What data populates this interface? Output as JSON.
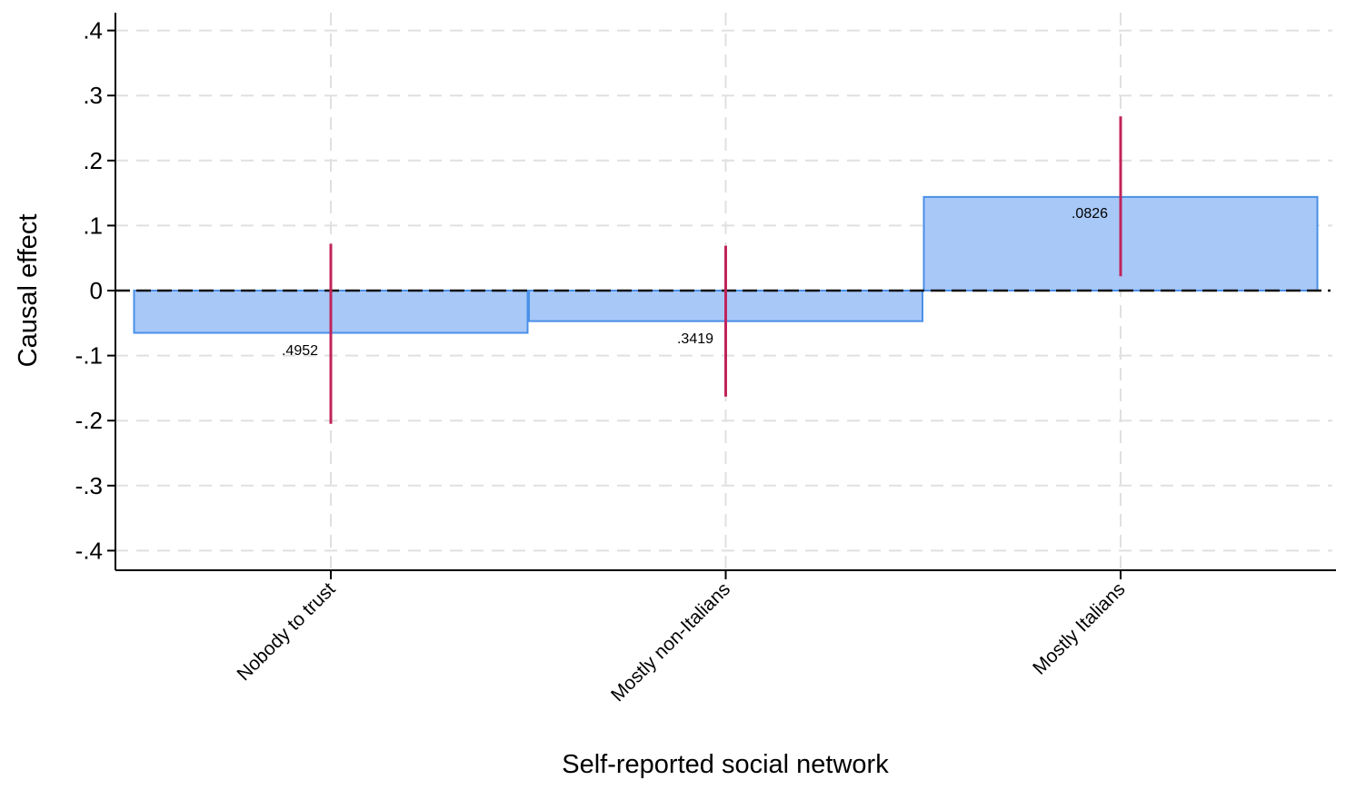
{
  "chart_data": {
    "type": "bar",
    "xlabel": "Self-reported social network",
    "ylabel": "Causal effect",
    "ylim": [
      -0.4,
      0.4
    ],
    "yticks": [
      0.4,
      0.3,
      0.2,
      0.1,
      0,
      -0.1,
      -0.2,
      -0.3,
      -0.4
    ],
    "ytick_labels": [
      ".4",
      ".3",
      ".2",
      ".1",
      "0",
      "-.1",
      "-.2",
      "-.3",
      "-.4"
    ],
    "categories": [
      "Nobody to trust",
      "Mostly non-Italians",
      "Mostly Italians"
    ],
    "values": [
      -0.065,
      -0.047,
      0.144
    ],
    "ci_low": [
      -0.205,
      -0.163,
      0.022
    ],
    "ci_high": [
      0.072,
      0.069,
      0.268
    ],
    "bar_labels": [
      ".4952",
      ".3419",
      ".0826"
    ],
    "grid": true,
    "colors": {
      "bar_fill": "#a8c8f8",
      "bar_stroke": "#4a90e8",
      "ci": "#c0245a",
      "grid": "#e0e0e0"
    }
  }
}
